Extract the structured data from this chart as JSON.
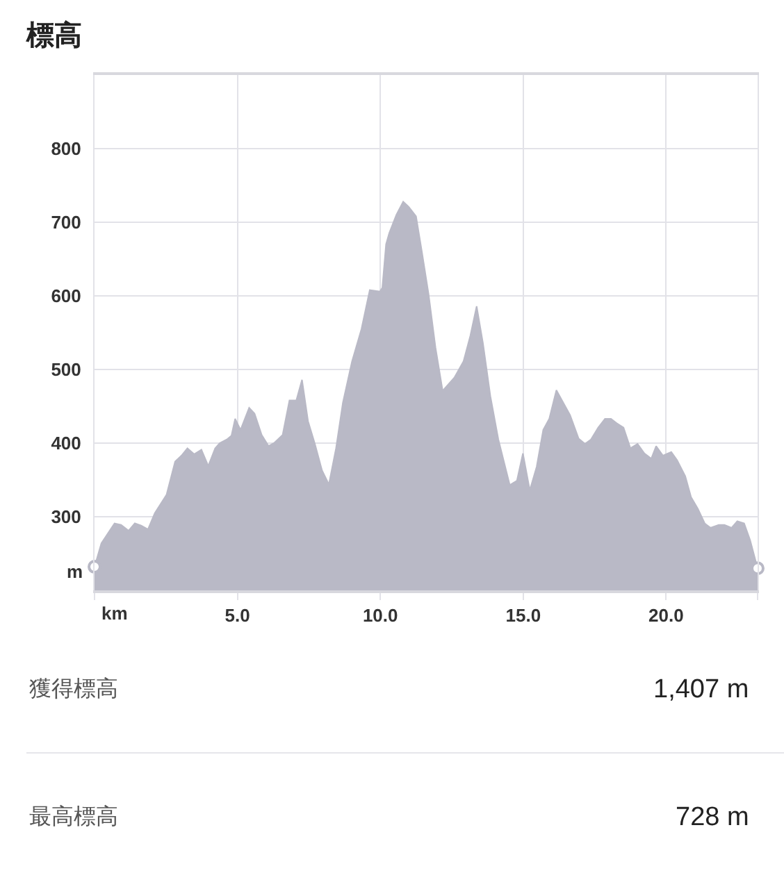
{
  "chart_data": {
    "type": "area",
    "title": "標高",
    "xlabel": "km",
    "ylabel": "m",
    "xlim": [
      0,
      23.2
    ],
    "ylim": [
      200,
      900
    ],
    "xticks": [
      {
        "value": 0,
        "label": null
      },
      {
        "value": 5,
        "label": "5.0"
      },
      {
        "value": 10,
        "label": "10.0"
      },
      {
        "value": 15,
        "label": "15.0"
      },
      {
        "value": 20,
        "label": "20.0"
      },
      {
        "value": 23.2,
        "label": null
      }
    ],
    "yticks": [
      300,
      400,
      500,
      600,
      700,
      800,
      {
        "value": 900,
        "label": null
      }
    ],
    "grid": true,
    "series": [
      {
        "color": "#b9b9c6",
        "x": [
          0,
          0.24,
          0.7,
          0.93,
          1.19,
          1.41,
          1.63,
          1.87,
          2.11,
          2.52,
          2.82,
          3.04,
          3.25,
          3.49,
          3.74,
          3.98,
          4.22,
          4.38,
          4.63,
          4.79,
          4.92,
          5.11,
          5.41,
          5.6,
          5.85,
          6.09,
          6.28,
          6.58,
          6.82,
          7.06,
          7.26,
          7.47,
          7.71,
          7.96,
          8.2,
          8.45,
          8.69,
          9.01,
          9.34,
          9.63,
          9.99,
          10.07,
          10.2,
          10.31,
          10.56,
          10.8,
          10.99,
          11.25,
          11.45,
          11.69,
          11.93,
          12.18,
          12.59,
          12.91,
          13.15,
          13.37,
          13.59,
          13.85,
          14.13,
          14.53,
          14.78,
          14.99,
          15.23,
          15.47,
          15.7,
          15.91,
          16.16,
          16.4,
          16.64,
          16.94,
          17.16,
          17.37,
          17.62,
          17.86,
          18.07,
          18.27,
          18.51,
          18.75,
          19.0,
          19.24,
          19.48,
          19.65,
          19.89,
          20.18,
          20.38,
          20.67,
          20.87,
          21.11,
          21.35,
          21.55,
          21.84,
          22.04,
          22.29,
          22.49,
          22.73,
          22.94,
          23.2
        ],
        "values": [
          232,
          264,
          291,
          289,
          281,
          291,
          288,
          283,
          305,
          330,
          375,
          383,
          393,
          385,
          391,
          369,
          393,
          400,
          405,
          410,
          433,
          418,
          448,
          440,
          411,
          396,
          400,
          411,
          458,
          458,
          486,
          430,
          399,
          363,
          344,
          393,
          455,
          511,
          555,
          608,
          606,
          611,
          670,
          685,
          710,
          728,
          721,
          708,
          661,
          602,
          530,
          471,
          489,
          511,
          546,
          586,
          536,
          464,
          405,
          343,
          349,
          386,
          336,
          368,
          418,
          433,
          472,
          455,
          438,
          406,
          399,
          405,
          421,
          433,
          433,
          427,
          421,
          393,
          399,
          386,
          379,
          396,
          383,
          388,
          377,
          355,
          327,
          311,
          291,
          285,
          289,
          289,
          285,
          294,
          291,
          268,
          230
        ]
      },
      {
        "type": "scatter",
        "marker": "circle",
        "color": "#b9b9c6",
        "x": [
          0,
          23.2
        ],
        "values": [
          232,
          230
        ]
      }
    ],
    "annotations": [
      "獲得標高",
      "1,407 m",
      "最高標高",
      "728 m"
    ]
  }
}
